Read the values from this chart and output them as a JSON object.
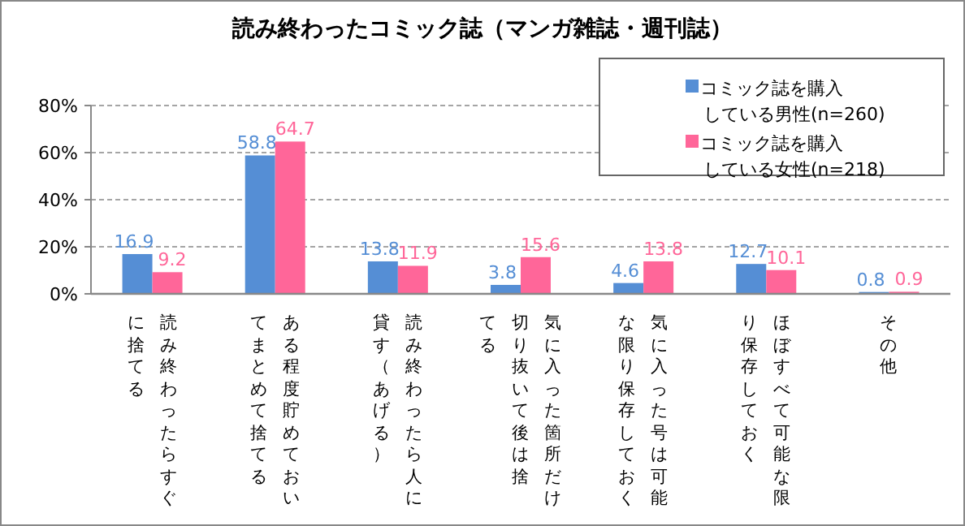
{
  "chart_data": {
    "type": "bar",
    "title": "読み終わったコミック誌（マンガ雑誌・週刊誌）",
    "categories": [
      "読み終わったらすぐに捨てる",
      "ある程度貯めておいてまとめて捨てる",
      "読み終わったら人に貸す（あげる）",
      "気に入った箇所だけ切り抜いて後は捨てる",
      "気に入った号は可能な限り保存しておく",
      "ほぼすべて可能な限り保存しておく",
      "その他"
    ],
    "series": [
      {
        "name": "コミック誌を購入している男性(n=260)",
        "color": "#558ed5",
        "values": [
          16.9,
          58.8,
          13.8,
          3.8,
          4.6,
          12.7,
          0.8
        ]
      },
      {
        "name": "コミック誌を購入している女性(n=218)",
        "color": "#ff6699",
        "values": [
          9.2,
          64.7,
          11.9,
          15.6,
          13.8,
          10.1,
          0.9
        ]
      }
    ],
    "ylim": [
      0,
      80
    ],
    "yticks": [
      {
        "value": 0,
        "label": "0%"
      },
      {
        "value": 20,
        "label": "20%"
      },
      {
        "value": 40,
        "label": "40%"
      },
      {
        "value": 60,
        "label": "60%"
      },
      {
        "value": 80,
        "label": "80%"
      }
    ],
    "grid": "y",
    "legend": "top right",
    "data_labels": true
  }
}
